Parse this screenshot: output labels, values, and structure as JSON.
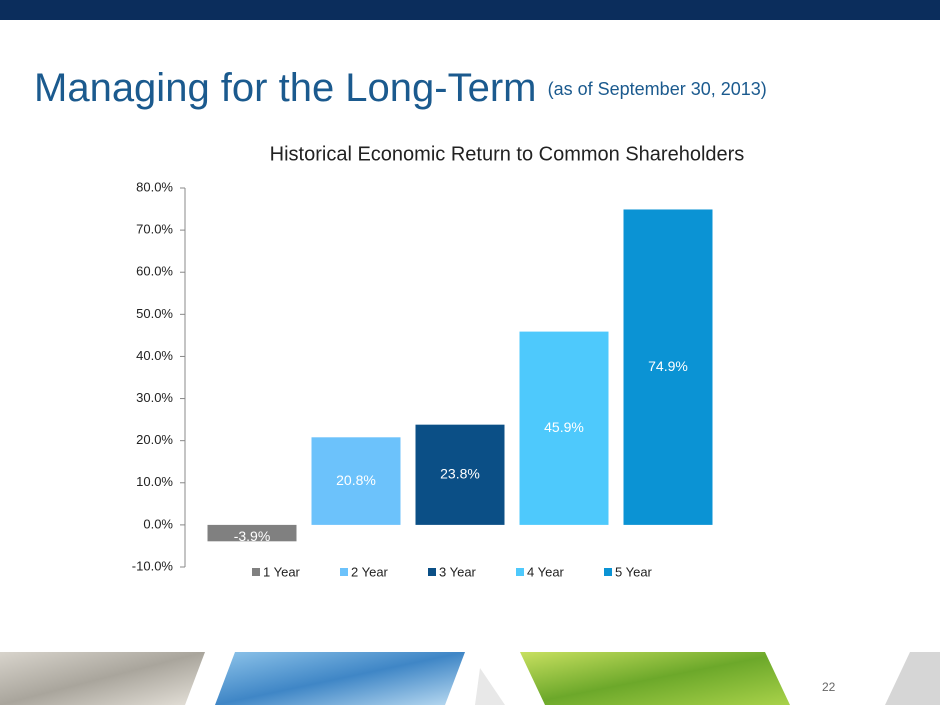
{
  "slide_title": "Managing for the Long-Term",
  "slide_subtitle": "(as of September 30, 2013)",
  "page_number": "22",
  "chart_data": {
    "type": "bar",
    "title": "Historical Economic Return to Common Shareholders",
    "categories": [
      null
    ],
    "series": [
      {
        "name": "1 Year",
        "color": "#808080",
        "values": [
          -3.9
        ],
        "value_labels": [
          "-3.9%"
        ]
      },
      {
        "name": "2 Year",
        "color": "#6cc2fb",
        "values": [
          20.8
        ],
        "value_labels": [
          "20.8%"
        ]
      },
      {
        "name": "3 Year",
        "color": "#0b4f86",
        "values": [
          23.8
        ],
        "value_labels": [
          "23.8%"
        ]
      },
      {
        "name": "4 Year",
        "color": "#4ec9fc",
        "values": [
          45.9
        ],
        "value_labels": [
          "45.9%"
        ]
      },
      {
        "name": "5 Year",
        "color": "#0b93d4",
        "values": [
          74.9
        ],
        "value_labels": [
          "74.9%"
        ]
      }
    ],
    "ylim": [
      -10,
      80
    ],
    "yticks": [
      {
        "value": -10,
        "label": "-10.0%"
      },
      {
        "value": 0,
        "label": "0.0%"
      },
      {
        "value": 10,
        "label": "10.0%"
      },
      {
        "value": 20,
        "label": "20.0%"
      },
      {
        "value": 30,
        "label": "30.0%"
      },
      {
        "value": 40,
        "label": "40.0%"
      },
      {
        "value": 50,
        "label": "50.0%"
      },
      {
        "value": 60,
        "label": "60.0%"
      },
      {
        "value": 70,
        "label": "70.0%"
      },
      {
        "value": 80,
        "label": "80.0%"
      }
    ],
    "grid": false,
    "legend": "bottom"
  }
}
